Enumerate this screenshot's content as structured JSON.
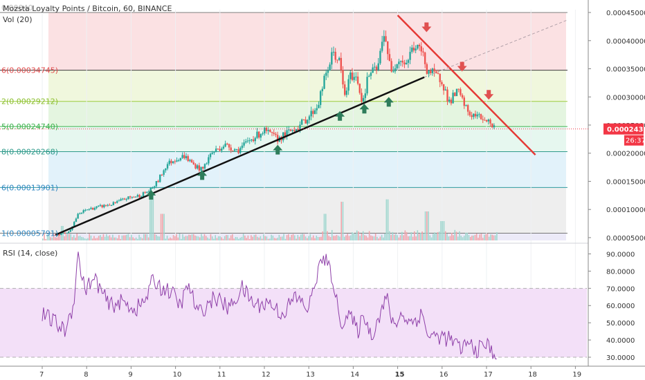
{
  "header": {
    "symbol_title": "Mozsta Loyalty Points / Bitcoin, 60, BINANCE",
    "overlay_text": "0.00040",
    "volume_label": "Vol (20)"
  },
  "price_axis": {
    "ticks": [
      "0.00045000",
      "0.00040000",
      "0.00035000",
      "0.00030000",
      "0.00025000",
      "0.00020000",
      "0.00015000",
      "0.00010000",
      "0.00005000"
    ],
    "tick_values": [
      0.00045,
      0.0004,
      0.00035,
      0.0003,
      0.00025,
      0.0002,
      0.00015,
      0.0001,
      5e-05
    ],
    "current_price": "0.00024304",
    "current_value": 0.00024304,
    "countdown": "26:37",
    "current_color": "#f23645"
  },
  "fib_levels": [
    {
      "label": "0.00045000",
      "value": 0.00045,
      "fill": "#fbe1e3",
      "line": "#7f7f7f",
      "text_color": "#7f7f7f"
    },
    {
      "label": "6(0.00034745)",
      "value": 0.00034745,
      "fill": "#f0f7dd",
      "line": "#3a3a3a",
      "text_color": "#e04a4a"
    },
    {
      "label": "2(0.00029212)",
      "value": 0.00029212,
      "fill": "#e4f5e0",
      "line": "#9bcb3c",
      "text_color": "#8bbf2c"
    },
    {
      "label": "5(0.00024740)",
      "value": 0.0002474,
      "fill": "#e6f7ef",
      "line": "#3fb34f",
      "text_color": "#3fb34f"
    },
    {
      "label": "8(0.00020268)",
      "value": 0.00020268,
      "fill": "#e2f2fa",
      "line": "#2e9a8a",
      "text_color": "#2e9a8a"
    },
    {
      "label": "6(0.00013901)",
      "value": 0.00013901,
      "fill": "#eeeeee",
      "line": "#2e9a9e",
      "text_color": "#2e86c1"
    },
    {
      "label": "1(0.00005791)",
      "value": 5.791e-05,
      "fill": "#eceaf8",
      "line": "#777777",
      "text_color": "#2e86c1"
    }
  ],
  "rsi": {
    "label": "RSI (14, close)",
    "ticks": [
      "90.0000",
      "80.0000",
      "70.0000",
      "60.0000",
      "50.0000",
      "40.0000",
      "30.0000"
    ],
    "tick_values": [
      90,
      80,
      70,
      60,
      50,
      40,
      30
    ],
    "upper_band": 70,
    "lower_band": 30,
    "line_color": "#8e3fa8",
    "band_color": "#f3e0f8"
  },
  "time_axis": {
    "labels": [
      "7",
      "8",
      "9",
      "10",
      "11",
      "12",
      "13",
      "14",
      "15",
      "16",
      "17",
      "18",
      "19"
    ],
    "bold_label": "15"
  },
  "chart_data": {
    "type": "candlestick",
    "title": "Mozsta Loyalty Points / Bitcoin, 60, BINANCE",
    "x_unit": "day",
    "ylim": [
      4.5e-05,
      0.000455
    ],
    "rsi_ylim": [
      28,
      93
    ],
    "grid": true,
    "price_anchors": [
      [
        7.3,
        5.5e-05
      ],
      [
        7.6,
        6e-05
      ],
      [
        7.8,
        9e-05
      ],
      [
        8.0,
        0.0001
      ],
      [
        8.3,
        0.000105
      ],
      [
        8.6,
        0.00011
      ],
      [
        8.9,
        0.00012
      ],
      [
        9.2,
        0.000125
      ],
      [
        9.45,
        0.000135
      ],
      [
        9.6,
        0.00015
      ],
      [
        9.8,
        0.00018
      ],
      [
        10.0,
        0.00019
      ],
      [
        10.2,
        0.000195
      ],
      [
        10.4,
        0.00018
      ],
      [
        10.6,
        0.00017
      ],
      [
        10.8,
        0.0002
      ],
      [
        11.1,
        0.000215
      ],
      [
        11.4,
        0.000205
      ],
      [
        11.7,
        0.000225
      ],
      [
        12.0,
        0.00024
      ],
      [
        12.3,
        0.000225
      ],
      [
        12.5,
        0.000235
      ],
      [
        12.8,
        0.00025
      ],
      [
        13.0,
        0.000265
      ],
      [
        13.2,
        0.000285
      ],
      [
        13.35,
        0.00033
      ],
      [
        13.55,
        0.00038
      ],
      [
        13.7,
        0.00036
      ],
      [
        13.8,
        0.0003
      ],
      [
        13.95,
        0.00034
      ],
      [
        14.1,
        0.00033
      ],
      [
        14.2,
        0.00029
      ],
      [
        14.35,
        0.00034
      ],
      [
        14.55,
        0.00035
      ],
      [
        14.7,
        0.00042
      ],
      [
        14.85,
        0.00034
      ],
      [
        15.0,
        0.00037
      ],
      [
        15.2,
        0.00036
      ],
      [
        15.35,
        0.00039
      ],
      [
        15.55,
        0.00038
      ],
      [
        15.65,
        0.00035
      ],
      [
        15.8,
        0.00034
      ],
      [
        16.0,
        0.00033
      ],
      [
        16.15,
        0.00029
      ],
      [
        16.35,
        0.00031
      ],
      [
        16.6,
        0.00027
      ],
      [
        16.8,
        0.000265
      ],
      [
        17.0,
        0.00026
      ],
      [
        17.2,
        0.000243
      ]
    ],
    "trendlines": [
      {
        "name": "support",
        "color": "#111111",
        "from": [
          7.3,
          5.5e-05
        ],
        "to": [
          15.6,
          0.000335
        ]
      },
      {
        "name": "resistance",
        "color": "#e53935",
        "from": [
          15.0,
          0.000445
        ],
        "to": [
          18.1,
          0.000197
        ]
      },
      {
        "name": "extension",
        "color": "#b0a0a8",
        "dashed": true,
        "from": [
          15.6,
          0.000335
        ],
        "to": [
          18.8,
          0.000436
        ]
      }
    ],
    "arrows_up": [
      [
        9.45,
        0.000125
      ],
      [
        10.6,
        0.00016
      ],
      [
        12.3,
        0.000205
      ],
      [
        13.7,
        0.000265
      ],
      [
        14.25,
        0.000278
      ],
      [
        14.8,
        0.00029
      ]
    ],
    "arrows_down": [
      [
        15.65,
        0.000425
      ],
      [
        16.45,
        0.000355
      ],
      [
        17.05,
        0.000305
      ]
    ],
    "volume_spikes": [
      [
        7.45,
        0.3
      ],
      [
        9.45,
        0.95
      ],
      [
        9.7,
        0.55
      ],
      [
        13.35,
        0.55
      ],
      [
        13.75,
        0.8
      ],
      [
        14.75,
        0.85
      ],
      [
        15.65,
        0.6
      ],
      [
        16.0,
        0.4
      ]
    ],
    "rsi_anchors": [
      [
        7.0,
        55
      ],
      [
        7.3,
        50
      ],
      [
        7.5,
        45
      ],
      [
        7.7,
        60
      ],
      [
        7.8,
        90
      ],
      [
        7.95,
        70
      ],
      [
        8.2,
        75
      ],
      [
        8.5,
        60
      ],
      [
        8.8,
        62
      ],
      [
        9.1,
        58
      ],
      [
        9.3,
        62
      ],
      [
        9.5,
        75
      ],
      [
        9.7,
        70
      ],
      [
        9.9,
        68
      ],
      [
        10.1,
        60
      ],
      [
        10.3,
        72
      ],
      [
        10.5,
        55
      ],
      [
        10.7,
        60
      ],
      [
        10.9,
        65
      ],
      [
        11.2,
        58
      ],
      [
        11.5,
        70
      ],
      [
        11.8,
        60
      ],
      [
        12.1,
        62
      ],
      [
        12.4,
        55
      ],
      [
        12.7,
        65
      ],
      [
        13.0,
        58
      ],
      [
        13.2,
        80
      ],
      [
        13.35,
        88
      ],
      [
        13.55,
        75
      ],
      [
        13.7,
        50
      ],
      [
        13.9,
        55
      ],
      [
        14.1,
        45
      ],
      [
        14.25,
        55
      ],
      [
        14.4,
        42
      ],
      [
        14.6,
        55
      ],
      [
        14.75,
        65
      ],
      [
        14.9,
        48
      ],
      [
        15.1,
        55
      ],
      [
        15.3,
        50
      ],
      [
        15.55,
        55
      ],
      [
        15.7,
        42
      ],
      [
        16.0,
        42
      ],
      [
        16.2,
        40
      ],
      [
        16.4,
        35
      ],
      [
        16.6,
        38
      ],
      [
        16.8,
        34
      ],
      [
        17.0,
        38
      ],
      [
        17.2,
        30
      ]
    ]
  }
}
